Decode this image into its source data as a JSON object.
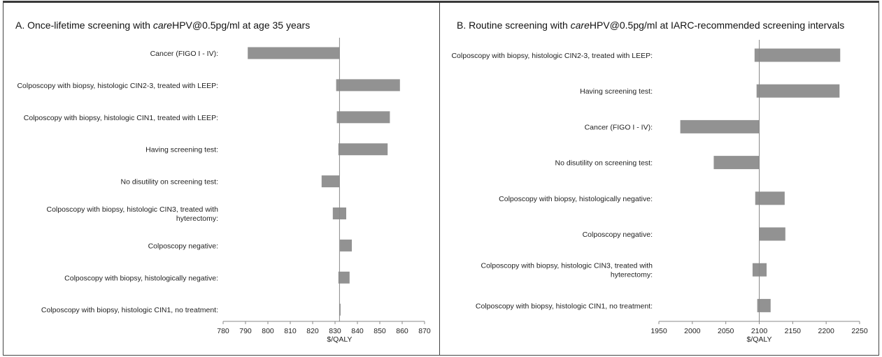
{
  "panels": {
    "a": {
      "title_prefix": "A. Once-lifetime screening with ",
      "title_italic": "care",
      "title_suffix": "HPV@0.5pg/ml at age 35 years"
    },
    "b": {
      "title_prefix": "B. Routine screening with ",
      "title_italic": "care",
      "title_suffix": "HPV@0.5pg/ml at IARC-recommended screening intervals"
    }
  },
  "chart_data": [
    {
      "type": "bar",
      "orientation": "horizontal",
      "subtype": "tornado",
      "xlabel": "$/QALY",
      "xlim": [
        780,
        870
      ],
      "xticks": [
        780,
        790,
        800,
        810,
        820,
        830,
        840,
        850,
        860,
        870
      ],
      "base_value": 832,
      "bar_color": "#929292",
      "categories": [
        [
          "Cancer (FIGO I - IV):"
        ],
        [
          "Colposcopy with biopsy, histologic CIN2-3, treated with LEEP:"
        ],
        [
          "Colposcopy with biopsy, histologic CIN1, treated with LEEP:"
        ],
        [
          "Having screening test:"
        ],
        [
          "No disutility on screening test:"
        ],
        [
          "Colposcopy with biopsy, histologic CIN3, treated with",
          "hyterectomy:"
        ],
        [
          "Colposcopy negative:"
        ],
        [
          "Colposcopy with biopsy, histologically negative:"
        ],
        [
          "Colposcopy with biopsy, histologic CIN1, no treatment:"
        ]
      ],
      "low": [
        791,
        830.5,
        830.8,
        831.5,
        824,
        829,
        832.2,
        831.5,
        832
      ],
      "high": [
        832,
        859,
        854.5,
        853.5,
        832,
        835,
        837.5,
        836.5,
        832.2
      ]
    },
    {
      "type": "bar",
      "orientation": "horizontal",
      "subtype": "tornado",
      "xlabel": "$/QALY",
      "xlim": [
        1950,
        2250
      ],
      "xticks": [
        1950,
        2000,
        2050,
        2100,
        2150,
        2200,
        2250
      ],
      "base_value": 2100,
      "bar_color": "#929292",
      "categories": [
        [
          "Colposcopy with biopsy, histologic CIN2-3, treated with LEEP:"
        ],
        [
          "Having screening test:"
        ],
        [
          "Cancer (FIGO I - IV):"
        ],
        [
          "No disutility on screening test:"
        ],
        [
          "Colposcopy with biopsy, histologically negative:"
        ],
        [
          "Colposcopy negative:"
        ],
        [
          "Colposcopy with biopsy, histologic CIN3, treated with",
          "hyterectomy:"
        ],
        [
          "Colposcopy with biopsy, histologic CIN1, no treatment:"
        ]
      ],
      "low": [
        2093,
        2096,
        1982,
        2032,
        2094,
        2100,
        2090,
        2097
      ],
      "high": [
        2221,
        2220,
        2100,
        2100,
        2138,
        2139,
        2111,
        2117
      ]
    }
  ]
}
